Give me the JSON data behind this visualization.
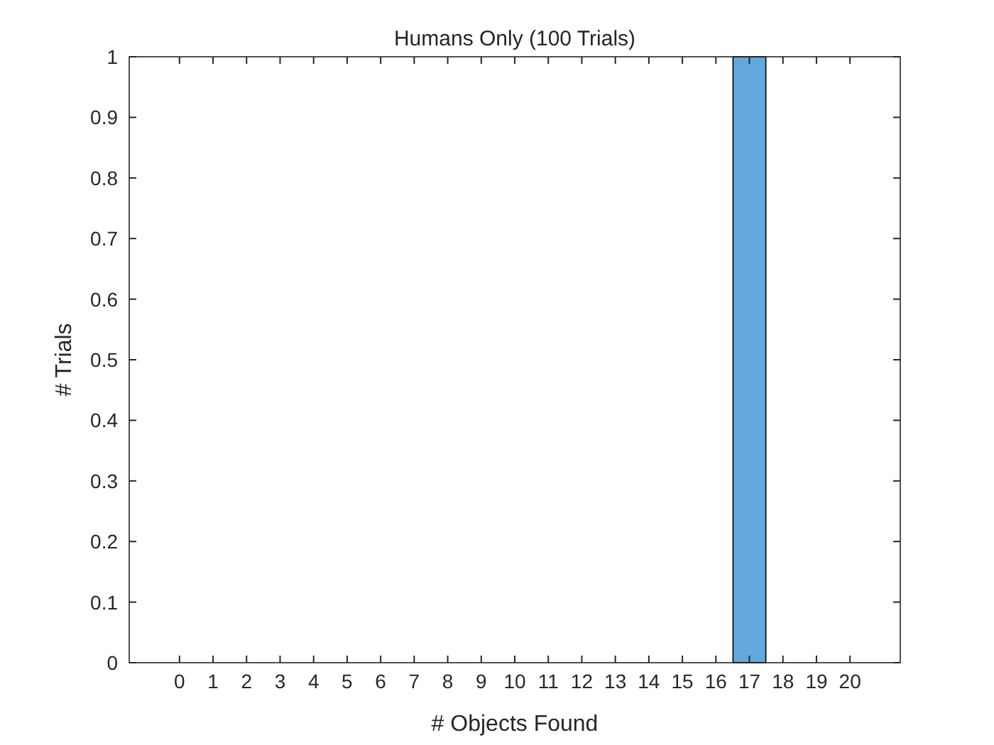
{
  "chart_data": {
    "type": "bar",
    "title": "Humans Only (100 Trials)",
    "xlabel": "# Objects Found",
    "ylabel": "# Trials",
    "x": [
      0,
      1,
      2,
      3,
      4,
      5,
      6,
      7,
      8,
      9,
      10,
      11,
      12,
      13,
      14,
      15,
      16,
      17,
      18,
      19,
      20
    ],
    "values": [
      0,
      0,
      0,
      0,
      0,
      0,
      0,
      0,
      0,
      0,
      0,
      0,
      0,
      0,
      0,
      0,
      0,
      1,
      0,
      0,
      0
    ],
    "color": "#62a8dc",
    "xlim": [
      -1.5,
      21.5
    ],
    "xticks": [
      0,
      1,
      2,
      3,
      4,
      5,
      6,
      7,
      8,
      9,
      10,
      11,
      12,
      13,
      14,
      15,
      16,
      17,
      18,
      19,
      20
    ],
    "ylim": [
      0,
      1
    ],
    "yticks": [
      0,
      0.1,
      0.2,
      0.3,
      0.4,
      0.5,
      0.6,
      0.7,
      0.8,
      0.9,
      1
    ],
    "grid": false,
    "legend": false
  }
}
